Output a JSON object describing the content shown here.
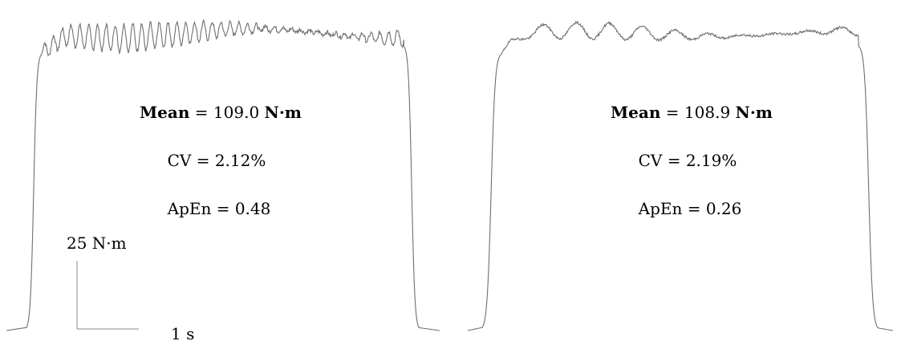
{
  "chart_data": [
    {
      "type": "line",
      "annotations": {
        "mean_label": "Mean",
        "mean_value": "109.0",
        "mean_unit": "N·m",
        "cv": "CV = 2.12%",
        "apen": "ApEn = 0.48"
      },
      "stats": {
        "mean": 109.0,
        "cv_percent": 2.12,
        "apen": 0.48
      },
      "trace": {
        "baseline": 0,
        "plateau_mean": 109.0,
        "rise_duration_s": 0.4,
        "plateau_duration_s": 9.1,
        "fall_duration_s": 0.4,
        "fluctuation_amplitude": 5.0,
        "fluctuation_frequency_hz": 4.5
      },
      "scale_bar": {
        "y_value": 25,
        "y_label": "25 N·m",
        "x_value": 1,
        "x_label": "1 s"
      },
      "grid": false,
      "legend": "none",
      "line_color": "#6f6f6f"
    },
    {
      "type": "line",
      "annotations": {
        "mean_label": "Mean",
        "mean_value": "108.9",
        "mean_unit": "N·m",
        "cv": "CV = 2.19%",
        "apen": "ApEn = 0.26"
      },
      "stats": {
        "mean": 108.9,
        "cv_percent": 2.19,
        "apen": 0.26
      },
      "trace": {
        "baseline": 0,
        "plateau_mean": 108.9,
        "rise_duration_s": 0.5,
        "plateau_duration_s": 9.0,
        "fall_duration_s": 0.5,
        "fluctuation_amplitude": 3.0,
        "fluctuation_frequency_hz": 1.2
      },
      "grid": false,
      "legend": "none",
      "line_color": "#6f6f6f"
    }
  ]
}
